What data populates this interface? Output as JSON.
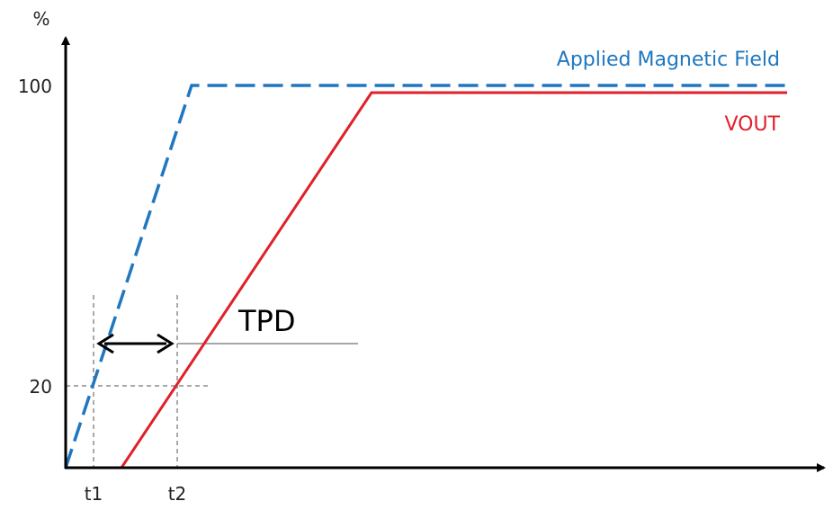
{
  "axis": {
    "y_unit": "%",
    "y_ticks": [
      "100",
      "20"
    ],
    "x_ticks": [
      "t1",
      "t2"
    ]
  },
  "legend": {
    "field": "Applied Magnetic Field",
    "vout": "VOUT"
  },
  "annotation": {
    "tpd": "TPD"
  },
  "colors": {
    "field": "#1f77c0",
    "vout": "#e0202a",
    "axis": "#000000",
    "guide": "#555555"
  }
}
